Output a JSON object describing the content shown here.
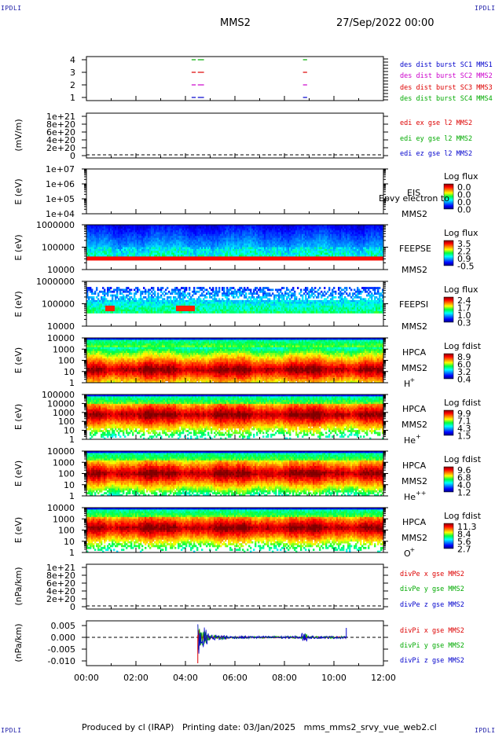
{
  "header": {
    "corner_label": "IPDLI",
    "spacecraft": "MMS2",
    "datetime": "27/Sep/2022 00:00"
  },
  "footer": {
    "text": "Produced by cl (IRAP)   Printing date: 03/Jan/2025   mms_mms2_srvy_vue_web2.cl"
  },
  "x_axis": {
    "ticks": [
      "00:00",
      "02:00",
      "04:00",
      "06:00",
      "08:00",
      "10:00",
      "12:00"
    ]
  },
  "colors": {
    "blue": "#0000cc",
    "magenta": "#cc00cc",
    "red": "#dd0000",
    "green": "#00aa00"
  },
  "panels": {
    "burst": {
      "yticks": [
        "4",
        "3",
        "2",
        "1"
      ],
      "legend": [
        {
          "text": "des dist burst SC1 MMS1",
          "color": "#0000cc"
        },
        {
          "text": "des dist burst SC2 MMS2",
          "color": "#cc00cc"
        },
        {
          "text": "des dist burst SC3 MMS3",
          "color": "#dd0000"
        },
        {
          "text": "des dist burst SC4 MMS4",
          "color": "#00aa00"
        }
      ]
    },
    "edi": {
      "ylabel": "(mV/m)",
      "yticks": [
        "1e+21",
        "8e+20",
        "6e+20",
        "4e+20",
        "2e+20",
        "0"
      ],
      "legend": [
        {
          "text": "edi ex gse l2 MMS2",
          "color": "#dd0000"
        },
        {
          "text": "edi ey gse l2 MMS2",
          "color": "#00aa00"
        },
        {
          "text": "edi ez gse l2 MMS2",
          "color": "#0000cc"
        }
      ]
    },
    "eis": {
      "ylabel": "E (eV)",
      "yticks": [
        "1e+07",
        "1e+06",
        "1e+05",
        "1e+04"
      ],
      "instrument": "EIS",
      "overlay_text": "Epvy electron to",
      "spacecraft": "MMS2",
      "cb_title": "Log flux",
      "cb_values": [
        "0.0",
        "0.0",
        "0.0",
        "0.0"
      ]
    },
    "feepse": {
      "ylabel": "E (eV)",
      "yticks": [
        "1000000",
        "100000",
        "10000"
      ],
      "instrument": "FEEPSE",
      "spacecraft": "MMS2",
      "cb_title": "Log flux",
      "cb_values": [
        "3.5",
        "2.2",
        "0.9",
        "-0.5"
      ]
    },
    "feepsi": {
      "ylabel": "E (eV)",
      "yticks": [
        "1000000",
        "100000",
        "10000"
      ],
      "instrument": "FEEPSI",
      "spacecraft": "MMS2",
      "cb_title": "Log flux",
      "cb_values": [
        "2.4",
        "1.7",
        "1.0",
        "0.3"
      ]
    },
    "hpca_h": {
      "ylabel": "E (eV)",
      "yticks": [
        "10000",
        "1000",
        "100",
        "10",
        "1"
      ],
      "instrument": "HPCA",
      "spacecraft": "MMS2",
      "species": "H",
      "charge": "+",
      "cb_title": "Log fdist",
      "cb_values": [
        "8.9",
        "6.0",
        "3.2",
        "0.4"
      ]
    },
    "hpca_he1": {
      "ylabel": "E (eV)",
      "yticks": [
        "100000",
        "10000",
        "1000",
        "100",
        "10",
        "1"
      ],
      "instrument": "HPCA",
      "spacecraft": "MMS2",
      "species": "He",
      "charge": "+",
      "cb_title": "Log fdist",
      "cb_values": [
        "9.9",
        "7.1",
        "4.3",
        "1.5"
      ]
    },
    "hpca_he2": {
      "ylabel": "E (eV)",
      "yticks": [
        "10000",
        "1000",
        "100",
        "10",
        "1"
      ],
      "instrument": "HPCA",
      "spacecraft": "MMS2",
      "species": "He",
      "charge": "++",
      "cb_title": "Log fdist",
      "cb_values": [
        "9.6",
        "6.8",
        "4.0",
        "1.2"
      ]
    },
    "hpca_o": {
      "ylabel": "E (eV)",
      "yticks": [
        "10000",
        "1000",
        "100",
        "10",
        "1"
      ],
      "instrument": "HPCA",
      "spacecraft": "MMS2",
      "species": "O",
      "charge": "+",
      "cb_title": "Log fdist",
      "cb_values": [
        "11.3",
        "8.4",
        "5.6",
        "2.7"
      ]
    },
    "divpe": {
      "ylabel": "(nPa/km)",
      "yticks": [
        "1e+21",
        "8e+20",
        "6e+20",
        "4e+20",
        "2e+20",
        "0"
      ],
      "legend": [
        {
          "text": "divPe x gse MMS2",
          "color": "#dd0000"
        },
        {
          "text": "divPe y gse MMS2",
          "color": "#00aa00"
        },
        {
          "text": "divPe z gse MMS2",
          "color": "#0000cc"
        }
      ]
    },
    "divpi": {
      "ylabel": "(nPa/km)",
      "yticks": [
        "0.005",
        "0.000",
        "-0.005",
        "-0.010"
      ],
      "legend": [
        {
          "text": "divPi x gse MMS2",
          "color": "#dd0000"
        },
        {
          "text": "divPi y gse MMS2",
          "color": "#00aa00"
        },
        {
          "text": "divPi z gse MMS2",
          "color": "#0000cc"
        }
      ]
    }
  },
  "chart_data": {
    "type": "heatmap",
    "xlim": [
      "00:00",
      "12:00"
    ],
    "burst_intervals": [
      {
        "start": "04:15",
        "end": "04:25"
      },
      {
        "start": "04:30",
        "end": "04:45"
      },
      {
        "start": "08:45",
        "end": "08:55"
      }
    ],
    "divpi_range": [
      -0.012,
      0.007
    ],
    "divpi_activity": {
      "start": "04:30",
      "end": "10:30"
    }
  }
}
